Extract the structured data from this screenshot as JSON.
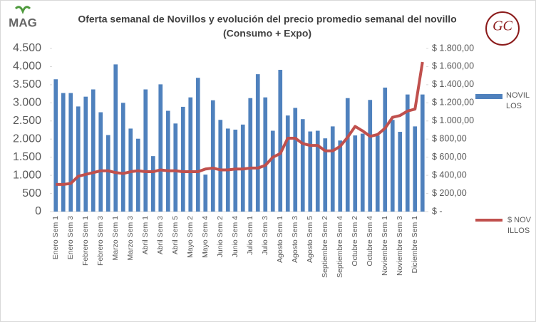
{
  "logos": {
    "left": "MAG",
    "right": "GC"
  },
  "chart_data": {
    "type": "bar_line",
    "title": "Oferta semanal de Novillos y evolución del precio promedio semanal del novillo",
    "subtitle": "(Consumo + Expo)",
    "categories": [
      "Enero Sem 1",
      null,
      "Enero Sem 3",
      null,
      "Febrero Sem 1",
      null,
      "Febrero Sem 3",
      null,
      "Marzo Sem 1",
      null,
      "Marzo Sem 3",
      null,
      "Abril Sem 1",
      null,
      "Abril Sem 3",
      null,
      "Abril Sem 5",
      null,
      "Mayo Sem 2",
      null,
      "Mayo Sem 4",
      null,
      "Junio Sem 2",
      null,
      "Junio Sem 4",
      null,
      "Julio Sem 1",
      null,
      "Julio Sem 3",
      null,
      "Agosto Sem 1",
      null,
      "Agosto Sem 3",
      null,
      "Agosto Sem 5",
      null,
      "Septiembre Sem 2",
      null,
      "Septiembre Sem 4",
      null,
      "Octubre Sem 2",
      null,
      "Octubre Sem 4",
      null,
      "Noviembre Sem 1",
      null,
      "Noviembre Sem 3",
      null,
      "Diciembre Sem 1",
      null
    ],
    "series": [
      {
        "name": "NOVILLOS",
        "color": "#4f81bd",
        "type": "bar",
        "values": [
          3650,
          3270,
          3270,
          2900,
          3170,
          3370,
          2740,
          2110,
          4060,
          3000,
          2290,
          2010,
          3370,
          1530,
          3510,
          2780,
          2430,
          2890,
          3150,
          3690,
          1020,
          3070,
          2530,
          2290,
          2260,
          2400,
          3130,
          3790,
          3150,
          2230,
          3910,
          2650,
          2860,
          2550,
          2210,
          2230,
          2020,
          2350,
          1960,
          3130,
          2100,
          2150,
          3080,
          2100,
          3420,
          2530,
          2200,
          3230,
          2350,
          3230
        ]
      },
      {
        "name": "$ NOVILLOS",
        "color": "#c0504d",
        "type": "line",
        "axis": "y2",
        "values": [
          300,
          300,
          310,
          390,
          410,
          430,
          450,
          450,
          430,
          420,
          440,
          450,
          440,
          440,
          460,
          450,
          450,
          440,
          440,
          440,
          470,
          480,
          460,
          460,
          470,
          470,
          480,
          480,
          510,
          600,
          640,
          810,
          810,
          750,
          730,
          730,
          670,
          670,
          720,
          820,
          940,
          890,
          830,
          850,
          920,
          1040,
          1060,
          1110,
          1130,
          1650
        ]
      }
    ],
    "ylim": [
      0,
      4500
    ],
    "yticks": [
      0,
      500,
      {
        "value": 1000,
        "label": "1.000"
      },
      {
        "value": 1500,
        "label": "1.500"
      },
      {
        "value": 2000,
        "label": "2.000"
      },
      {
        "value": 2500,
        "label": "2.500"
      },
      {
        "value": 3000,
        "label": "3.000"
      },
      {
        "value": 3500,
        "label": "3.500"
      },
      {
        "value": 4000,
        "label": "4.000"
      },
      {
        "value": 4500,
        "label": "4.500"
      }
    ],
    "y2lim": [
      0,
      1800
    ],
    "y2ticks": [
      {
        "value": 0,
        "label": "$ -"
      },
      {
        "value": 200,
        "label": "$ 200,00"
      },
      {
        "value": 400,
        "label": "$ 400,00"
      },
      {
        "value": 600,
        "label": "$ 600,00"
      },
      {
        "value": 800,
        "label": "$ 800,00"
      },
      {
        "value": 1000,
        "label": "$ 1.000,00"
      },
      {
        "value": 1200,
        "label": "$ 1.200,00"
      },
      {
        "value": 1400,
        "label": "$ 1.400,00"
      },
      {
        "value": 1600,
        "label": "$ 1.600,00"
      },
      {
        "value": 1800,
        "label": "$ 1.800,00"
      }
    ],
    "legend": "right"
  }
}
